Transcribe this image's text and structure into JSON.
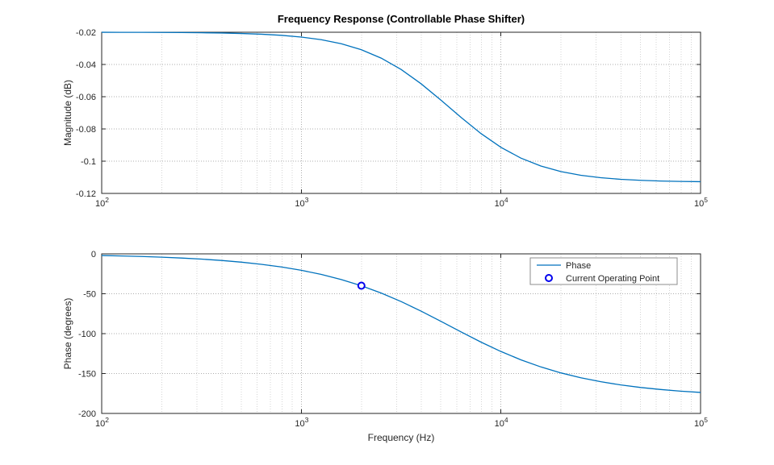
{
  "figure": {
    "background": "#ffffff",
    "line_color": "#0072BD",
    "marker_color": "#0000EE",
    "axis_color": "#262626",
    "grid_color": "#aeaeae",
    "minor_grid_color": "#d4d4d4",
    "tick_label_color": "#262626"
  },
  "chart_data": [
    {
      "type": "line",
      "title": "Frequency Response (Controllable Phase Shifter)",
      "ylabel": "Magnitude (dB)",
      "xlabel": "",
      "xscale": "log10",
      "xlim_log10": [
        2,
        5
      ],
      "ylim": [
        -0.12,
        -0.02
      ],
      "ytick_values": [
        -0.12,
        -0.1,
        -0.08,
        -0.06,
        -0.04,
        -0.02
      ],
      "ytick_labels": [
        "-0.12",
        "-0.1",
        "-0.08",
        "-0.06",
        "-0.04",
        "-0.02"
      ],
      "xtick_exponents": [
        2,
        3,
        4,
        5
      ],
      "x_log10": [
        2,
        2.1,
        2.2,
        2.3,
        2.4,
        2.5,
        2.6,
        2.7,
        2.8,
        2.9,
        3,
        3.1,
        3.2,
        3.3,
        3.4,
        3.5,
        3.6,
        3.7,
        3.8,
        3.9,
        4,
        4.1,
        4.2,
        4.3,
        4.4,
        4.5,
        4.6,
        4.7,
        4.8,
        4.9,
        5
      ],
      "values": [
        -0.02003,
        -0.02005,
        -0.02008,
        -0.02012,
        -0.02019,
        -0.02031,
        -0.02048,
        -0.02077,
        -0.02121,
        -0.0219,
        -0.02298,
        -0.02463,
        -0.02713,
        -0.03082,
        -0.03605,
        -0.04311,
        -0.05197,
        -0.06219,
        -0.07284,
        -0.08286,
        -0.0914,
        -0.09809,
        -0.103,
        -0.10643,
        -0.10875,
        -0.11027,
        -0.11126,
        -0.11189,
        -0.1123,
        -0.11256,
        -0.11272
      ]
    },
    {
      "type": "line",
      "title": "",
      "ylabel": "Phase (degrees)",
      "xlabel": "Frequency (Hz)",
      "xscale": "log10",
      "xlim_log10": [
        2,
        5
      ],
      "ylim": [
        -200,
        0
      ],
      "ytick_values": [
        -200,
        -150,
        -100,
        -50,
        0
      ],
      "ytick_labels": [
        "-200",
        "-150",
        "-100",
        "-50",
        "0"
      ],
      "xtick_exponents": [
        2,
        3,
        4,
        5
      ],
      "x_log10": [
        2,
        2.1,
        2.2,
        2.3,
        2.4,
        2.5,
        2.6,
        2.7,
        2.8,
        2.9,
        3,
        3.1,
        3.2,
        3.3,
        3.4,
        3.5,
        3.6,
        3.7,
        3.8,
        3.9,
        4,
        4.1,
        4.2,
        4.3,
        4.4,
        4.5,
        4.6,
        4.7,
        4.8,
        4.9,
        5
      ],
      "values": [
        -2.08,
        -2.62,
        -3.3,
        -4.16,
        -5.23,
        -6.58,
        -8.28,
        -10.41,
        -13.09,
        -16.44,
        -20.61,
        -25.79,
        -32.15,
        -39.87,
        -49.09,
        -59.79,
        -71.81,
        -84.69,
        -97.83,
        -110.6,
        -122.38,
        -132.81,
        -141.73,
        -149.18,
        -155.3,
        -160.27,
        -164.27,
        -167.48,
        -170.03,
        -172.08,
        -173.7
      ],
      "legend": [
        {
          "label": "Phase",
          "swatch": "line"
        },
        {
          "label": "Current Operating Point",
          "swatch": "marker"
        }
      ],
      "operating_point": {
        "x_log10": 3.301,
        "value": -39.9
      }
    }
  ]
}
